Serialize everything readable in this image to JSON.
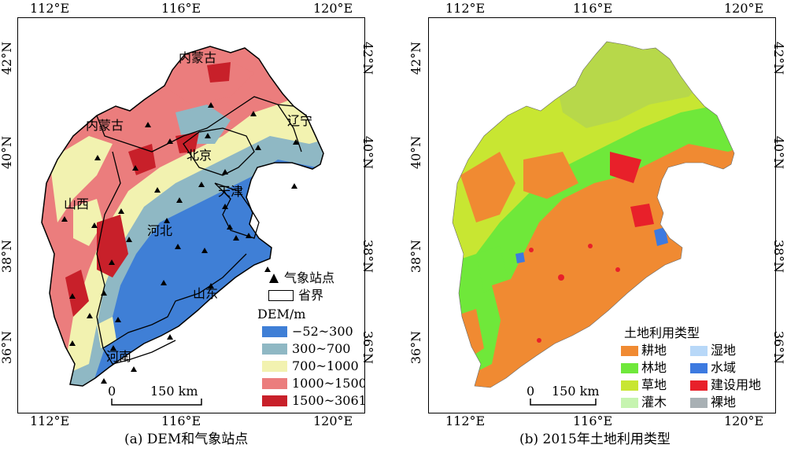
{
  "axis": {
    "lon_ticks": [
      "112°E",
      "116°E",
      "120°E"
    ],
    "lat_ticks": [
      "42°N",
      "40°N",
      "38°N",
      "36°N"
    ]
  },
  "panel_a": {
    "caption": "(a) DEM和气象站点",
    "province_labels": [
      "内蒙古",
      "内蒙古",
      "辽宁",
      "北京",
      "天津",
      "山西",
      "河北",
      "山东",
      "河南"
    ],
    "legend": {
      "station_label": "气象站点",
      "boundary_label": "省界",
      "dem_title": "DEM/m",
      "classes": [
        {
          "label": "−52~300",
          "color": "#3f7fd6"
        },
        {
          "label": "300~700",
          "color": "#8fb8c4"
        },
        {
          "label": "700~1000",
          "color": "#f2f2b0"
        },
        {
          "label": "1000~1500",
          "color": "#eb7d7d"
        },
        {
          "label": "1500~3061",
          "color": "#c8202a"
        }
      ]
    },
    "scale": {
      "zero": "0",
      "distance": "150 km"
    }
  },
  "panel_b": {
    "caption": "(b) 2015年土地利用类型",
    "legend": {
      "title": "土地利用类型",
      "classes": [
        {
          "label": "耕地",
          "color": "#f08a32"
        },
        {
          "label": "林地",
          "color": "#6fe83a"
        },
        {
          "label": "草地",
          "color": "#c8e632"
        },
        {
          "label": "灌木",
          "color": "#c6f4b0"
        },
        {
          "label": "湿地",
          "color": "#b8d8f8"
        },
        {
          "label": "水域",
          "color": "#3d7ae0"
        },
        {
          "label": "建设用地",
          "color": "#e8202a"
        },
        {
          "label": "裸地",
          "color": "#a8b0b4"
        }
      ]
    },
    "scale": {
      "zero": "0",
      "distance": "150 km"
    }
  }
}
